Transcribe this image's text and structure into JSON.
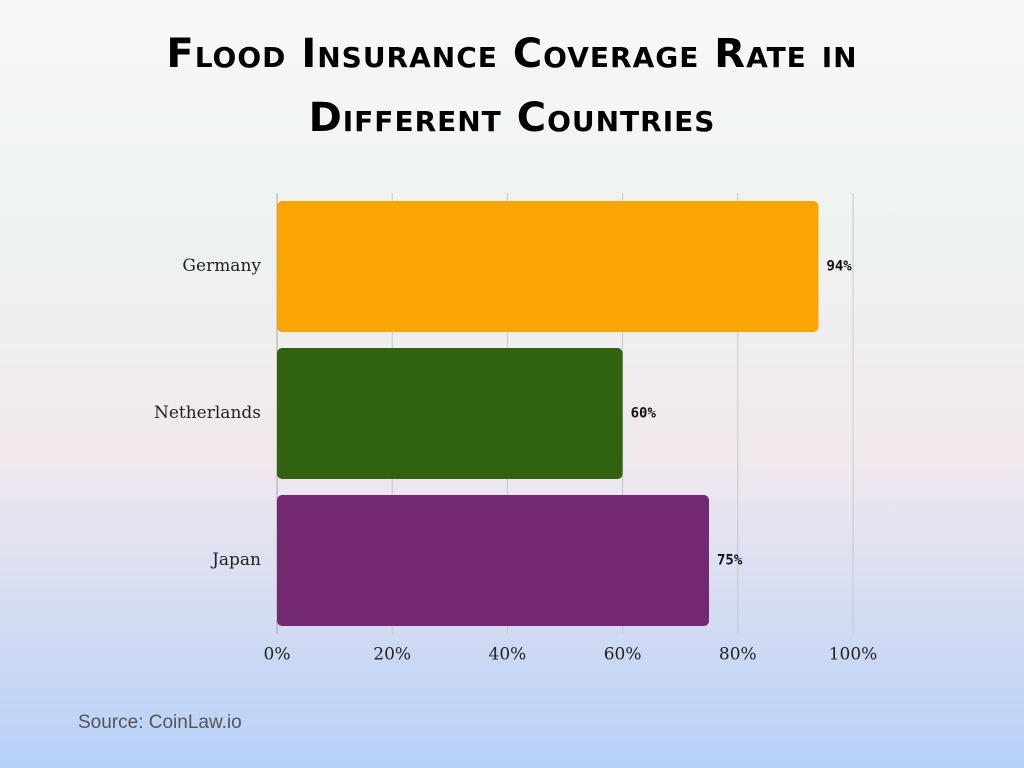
{
  "chart_data": {
    "type": "bar",
    "orientation": "horizontal",
    "title": "Flood Insurance Coverage Rate in Different Countries",
    "categories": [
      "Germany",
      "Netherlands",
      "Japan"
    ],
    "values": [
      94,
      60,
      75
    ],
    "value_labels": [
      "94%",
      "60%",
      "75%"
    ],
    "colors": [
      "#fba504",
      "#316210",
      "#732971"
    ],
    "xlim": [
      0,
      100
    ],
    "xticks": [
      {
        "value": 0,
        "label": "0%"
      },
      {
        "value": 20,
        "label": "20%"
      },
      {
        "value": 40,
        "label": "40%"
      },
      {
        "value": 60,
        "label": "60%"
      },
      {
        "value": 80,
        "label": "80%"
      },
      {
        "value": 100,
        "label": "100%"
      }
    ],
    "grid": true,
    "source": "Source: CoinLaw.io"
  }
}
